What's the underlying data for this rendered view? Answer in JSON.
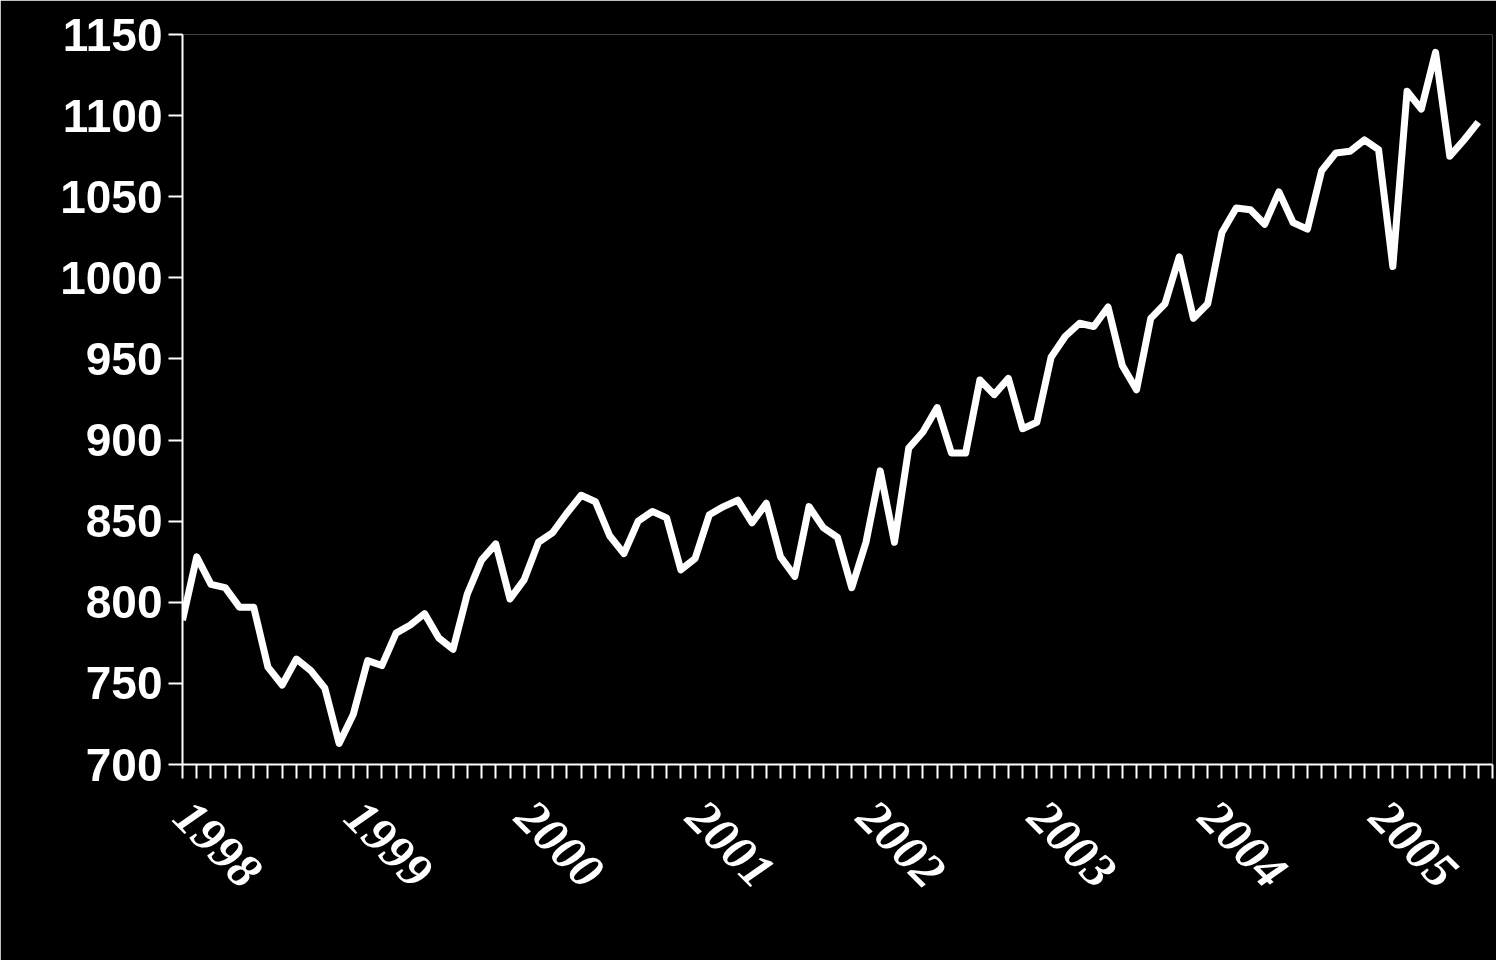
{
  "chart_data": {
    "type": "line",
    "categories": [
      "1998",
      null,
      null,
      null,
      null,
      null,
      null,
      null,
      null,
      null,
      null,
      null,
      "1999",
      null,
      null,
      null,
      null,
      null,
      null,
      null,
      null,
      null,
      null,
      null,
      "2000",
      null,
      null,
      null,
      null,
      null,
      null,
      null,
      null,
      null,
      null,
      null,
      "2001",
      null,
      null,
      null,
      null,
      null,
      null,
      null,
      null,
      null,
      null,
      null,
      "2002",
      null,
      null,
      null,
      null,
      null,
      null,
      null,
      null,
      null,
      null,
      null,
      "2003",
      null,
      null,
      null,
      null,
      null,
      null,
      null,
      null,
      null,
      null,
      null,
      "2004",
      null,
      null,
      null,
      null,
      null,
      null,
      null,
      null,
      null,
      null,
      null,
      "2005",
      null,
      null,
      null,
      null,
      null,
      null,
      null
    ],
    "series": [
      {
        "color": "#ffffff",
        "values": [
          789,
          828,
          811,
          809,
          797,
          797,
          760,
          749,
          765,
          758,
          747,
          713,
          731,
          764,
          761,
          781,
          786,
          793,
          778,
          771,
          805,
          826,
          836,
          802,
          814,
          837,
          843,
          855,
          866,
          862,
          841,
          830,
          850,
          856,
          852,
          820,
          827,
          854,
          859,
          863,
          849,
          861,
          828,
          816,
          859,
          846,
          840,
          809,
          837,
          881,
          837,
          895,
          905,
          920,
          892,
          892,
          937,
          928,
          938,
          907,
          911,
          951,
          964,
          972,
          970,
          982,
          946,
          931,
          975,
          984,
          1013,
          975,
          984,
          1028,
          1043,
          1042,
          1033,
          1053,
          1034,
          1030,
          1066,
          1077,
          1078,
          1085,
          1079,
          1007,
          1115,
          1104,
          1139,
          1075,
          1085,
          1096
        ]
      }
    ],
    "ylim": [
      700,
      1150
    ],
    "yticks": [
      700,
      750,
      800,
      850,
      900,
      950,
      1000,
      1050,
      1100,
      1150
    ],
    "grid": false,
    "marker": "none",
    "line_style": "solid"
  }
}
